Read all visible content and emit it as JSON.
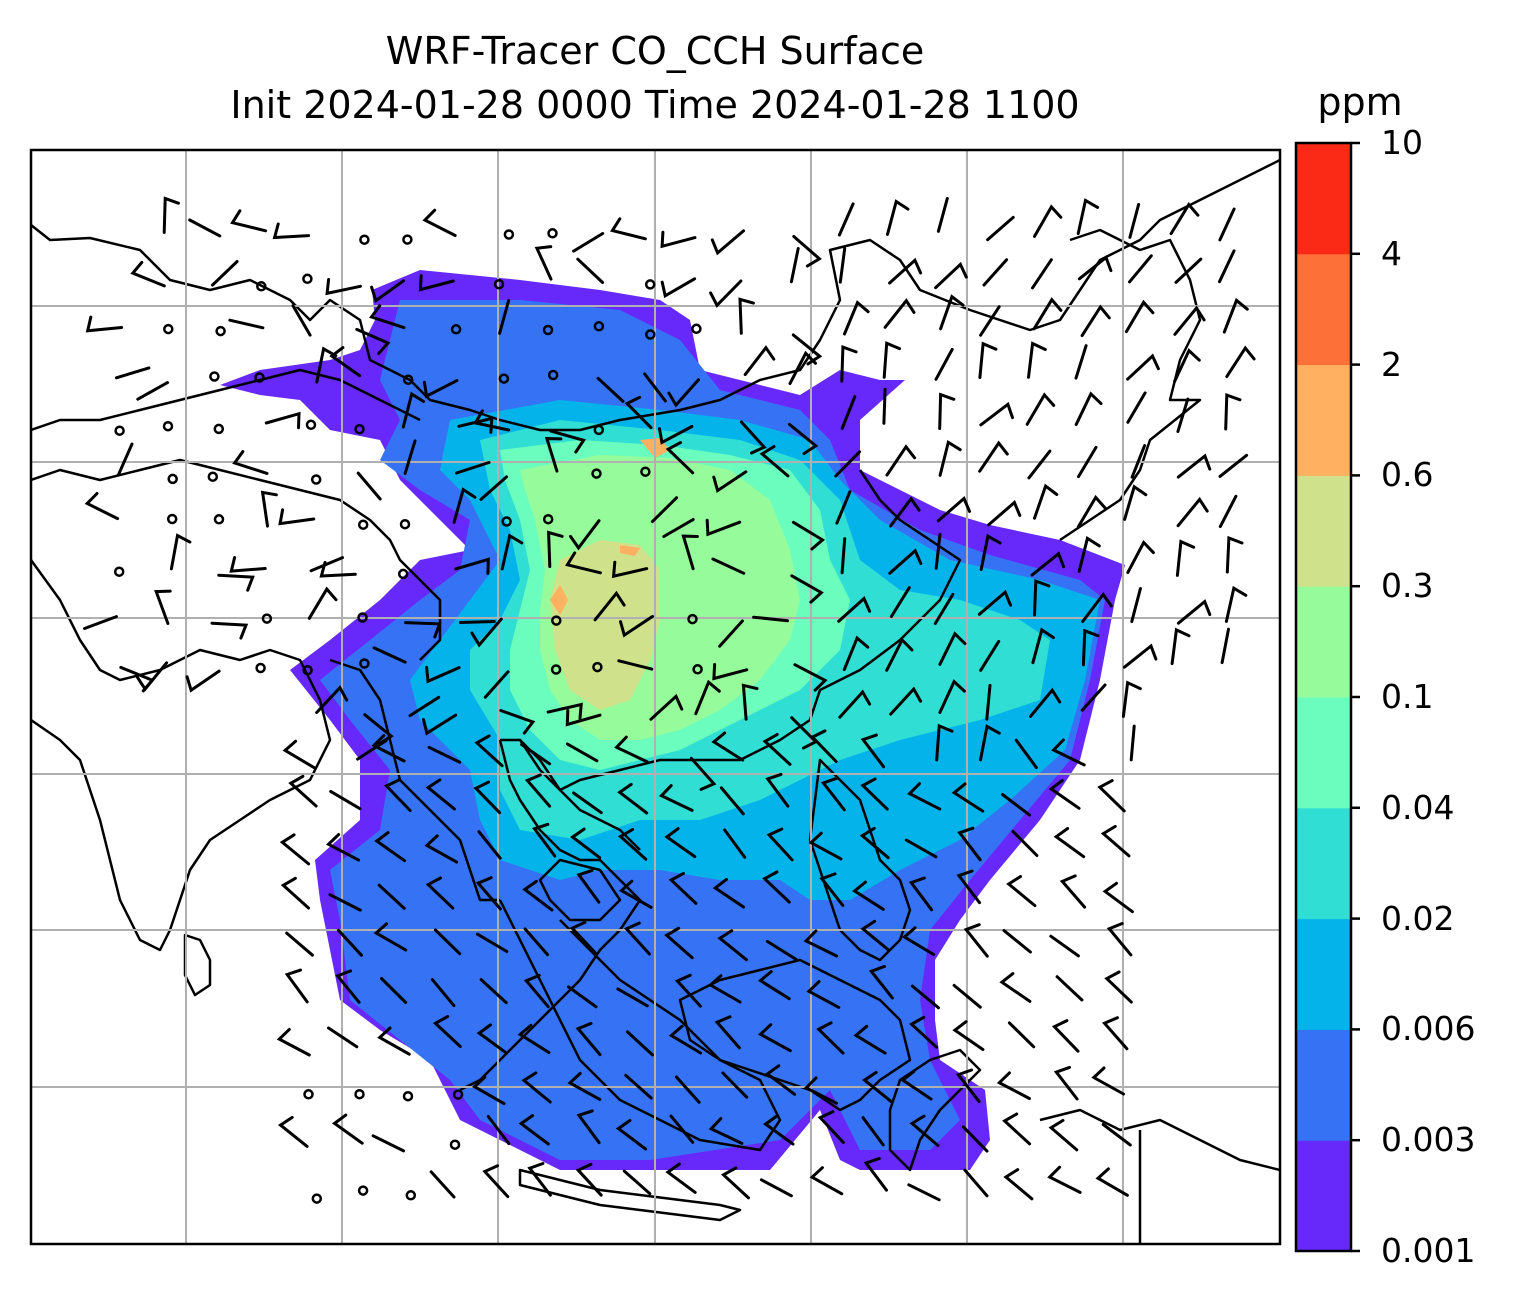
{
  "title": {
    "line1": "WRF-Tracer CO_CCH Surface",
    "line2": "Init 2024-01-28 0000 Time 2024-01-28 1100"
  },
  "colorbar": {
    "unit": "ppm",
    "levels": [
      "0.001",
      "0.003",
      "0.006",
      "0.02",
      "0.04",
      "0.1",
      "0.3",
      "0.6",
      "2",
      "4",
      "10"
    ],
    "colors": [
      "#6629fa",
      "#3673f4",
      "#04b3e9",
      "#30ded4",
      "#6afdbe",
      "#96fb9a",
      "#cfe18a",
      "#ffb061",
      "#fd7139",
      "#fb2a16"
    ]
  },
  "map": {
    "background": "#ffffff",
    "gridline_color": "#b0b0b0",
    "coastline_color": "#000000",
    "wind_barbs": "black",
    "calm_marker": "circle"
  }
}
